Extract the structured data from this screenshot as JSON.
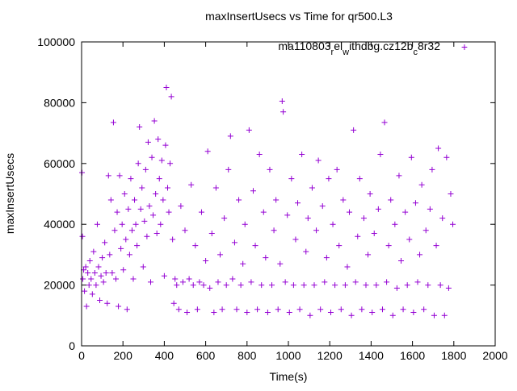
{
  "chart_data": {
    "type": "scatter",
    "title": "maxInsertUsecs vs Time for qr500.L3",
    "xlabel": "Time(s)",
    "ylabel": "maxInsertUsecs",
    "xlim": [
      0,
      2000
    ],
    "ylim": [
      0,
      100000
    ],
    "xticks": [
      "0",
      "200",
      "400",
      "600",
      "800",
      "1000",
      "1200",
      "1400",
      "1600",
      "1800",
      "2000"
    ],
    "xtick_values": [
      0,
      200,
      400,
      600,
      800,
      1000,
      1200,
      1400,
      1600,
      1800,
      2000
    ],
    "yticks": [
      "0",
      "20000",
      "40000",
      "60000",
      "80000",
      "100000"
    ],
    "ytick_values": [
      0,
      20000,
      40000,
      60000,
      80000,
      100000
    ],
    "grid": false,
    "legend_position": "top-right",
    "series": [
      {
        "name": "ma110803_rel_withdbg.cz12b_c8r32",
        "name_parts": [
          {
            "t": "ma110803"
          },
          {
            "t": "r",
            "sub": true
          },
          {
            "t": "el"
          },
          {
            "t": "w",
            "sub": true
          },
          {
            "t": "ithdbg.cz12b"
          },
          {
            "t": "c",
            "sub": true
          },
          {
            "t": "8r32"
          }
        ],
        "color": "#9400d3",
        "marker": "+",
        "points": [
          [
            2,
            57000
          ],
          [
            4,
            36000
          ],
          [
            6,
            22000
          ],
          [
            10,
            25000
          ],
          [
            14,
            18000
          ],
          [
            20,
            26000
          ],
          [
            24,
            13000
          ],
          [
            30,
            24000
          ],
          [
            36,
            20000
          ],
          [
            40,
            28000
          ],
          [
            46,
            22000
          ],
          [
            52,
            17000
          ],
          [
            58,
            31000
          ],
          [
            64,
            24000
          ],
          [
            70,
            20000
          ],
          [
            76,
            40000
          ],
          [
            82,
            26000
          ],
          [
            88,
            15000
          ],
          [
            94,
            23000
          ],
          [
            100,
            29000
          ],
          [
            106,
            21000
          ],
          [
            112,
            34000
          ],
          [
            118,
            24000
          ],
          [
            124,
            14000
          ],
          [
            130,
            56000
          ],
          [
            136,
            30000
          ],
          [
            142,
            48000
          ],
          [
            148,
            24000
          ],
          [
            154,
            73500
          ],
          [
            160,
            38000
          ],
          [
            166,
            22000
          ],
          [
            172,
            44000
          ],
          [
            178,
            13000
          ],
          [
            184,
            56000
          ],
          [
            190,
            32000
          ],
          [
            196,
            40000
          ],
          [
            202,
            25000
          ],
          [
            208,
            50000
          ],
          [
            214,
            35000
          ],
          [
            220,
            12000
          ],
          [
            226,
            45000
          ],
          [
            232,
            30000
          ],
          [
            238,
            55000
          ],
          [
            244,
            38000
          ],
          [
            250,
            22000
          ],
          [
            256,
            48000
          ],
          [
            262,
            40000
          ],
          [
            268,
            33000
          ],
          [
            274,
            60000
          ],
          [
            280,
            72000
          ],
          [
            286,
            45000
          ],
          [
            292,
            52000
          ],
          [
            298,
            26000
          ],
          [
            304,
            41000
          ],
          [
            310,
            58000
          ],
          [
            316,
            36000
          ],
          [
            322,
            67000
          ],
          [
            328,
            46000
          ],
          [
            334,
            21000
          ],
          [
            340,
            62000
          ],
          [
            346,
            43000
          ],
          [
            352,
            74000
          ],
          [
            358,
            50000
          ],
          [
            364,
            37000
          ],
          [
            370,
            68000
          ],
          [
            376,
            55000
          ],
          [
            382,
            40000
          ],
          [
            388,
            61000
          ],
          [
            394,
            48000
          ],
          [
            400,
            23000
          ],
          [
            406,
            66000
          ],
          [
            410,
            85000
          ],
          [
            416,
            52000
          ],
          [
            422,
            44000
          ],
          [
            428,
            60000
          ],
          [
            434,
            82000
          ],
          [
            440,
            35000
          ],
          [
            446,
            14000
          ],
          [
            452,
            22000
          ],
          [
            460,
            20000
          ],
          [
            470,
            12000
          ],
          [
            480,
            46000
          ],
          [
            490,
            21000
          ],
          [
            500,
            38000
          ],
          [
            510,
            11000
          ],
          [
            520,
            22000
          ],
          [
            530,
            53000
          ],
          [
            540,
            20000
          ],
          [
            550,
            33000
          ],
          [
            560,
            12000
          ],
          [
            570,
            21000
          ],
          [
            580,
            44000
          ],
          [
            590,
            20000
          ],
          [
            600,
            28000
          ],
          [
            610,
            64000
          ],
          [
            620,
            19000
          ],
          [
            630,
            37000
          ],
          [
            640,
            11000
          ],
          [
            650,
            52000
          ],
          [
            660,
            21000
          ],
          [
            670,
            30000
          ],
          [
            680,
            12000
          ],
          [
            690,
            42000
          ],
          [
            700,
            20000
          ],
          [
            710,
            58000
          ],
          [
            720,
            69000
          ],
          [
            730,
            22000
          ],
          [
            740,
            34000
          ],
          [
            750,
            12000
          ],
          [
            760,
            48000
          ],
          [
            770,
            20000
          ],
          [
            780,
            27000
          ],
          [
            790,
            40000
          ],
          [
            800,
            11000
          ],
          [
            810,
            71000
          ],
          [
            820,
            21000
          ],
          [
            830,
            51000
          ],
          [
            840,
            33000
          ],
          [
            850,
            12000
          ],
          [
            860,
            63000
          ],
          [
            870,
            20000
          ],
          [
            880,
            44000
          ],
          [
            890,
            29000
          ],
          [
            900,
            11000
          ],
          [
            910,
            58000
          ],
          [
            920,
            20000
          ],
          [
            930,
            38000
          ],
          [
            940,
            48000
          ],
          [
            950,
            12000
          ],
          [
            960,
            27000
          ],
          [
            970,
            80500
          ],
          [
            975,
            77000
          ],
          [
            985,
            21000
          ],
          [
            995,
            43000
          ],
          [
            1005,
            11000
          ],
          [
            1015,
            55000
          ],
          [
            1025,
            20000
          ],
          [
            1035,
            35000
          ],
          [
            1045,
            47000
          ],
          [
            1055,
            12000
          ],
          [
            1065,
            63000
          ],
          [
            1075,
            20000
          ],
          [
            1085,
            31000
          ],
          [
            1095,
            42000
          ],
          [
            1105,
            10000
          ],
          [
            1115,
            52000
          ],
          [
            1125,
            20000
          ],
          [
            1135,
            38000
          ],
          [
            1145,
            61000
          ],
          [
            1155,
            12000
          ],
          [
            1165,
            46000
          ],
          [
            1175,
            21000
          ],
          [
            1185,
            29000
          ],
          [
            1195,
            55000
          ],
          [
            1205,
            11000
          ],
          [
            1215,
            40000
          ],
          [
            1225,
            20000
          ],
          [
            1235,
            58000
          ],
          [
            1245,
            33000
          ],
          [
            1255,
            12000
          ],
          [
            1265,
            48000
          ],
          [
            1275,
            20000
          ],
          [
            1285,
            26000
          ],
          [
            1295,
            44000
          ],
          [
            1305,
            10000
          ],
          [
            1315,
            71000
          ],
          [
            1325,
            21000
          ],
          [
            1335,
            36000
          ],
          [
            1345,
            55000
          ],
          [
            1355,
            12000
          ],
          [
            1365,
            42000
          ],
          [
            1375,
            20000
          ],
          [
            1385,
            30000
          ],
          [
            1395,
            50000
          ],
          [
            1405,
            11000
          ],
          [
            1415,
            37000
          ],
          [
            1425,
            20000
          ],
          [
            1435,
            45000
          ],
          [
            1445,
            63000
          ],
          [
            1455,
            12000
          ],
          [
            1465,
            73500
          ],
          [
            1475,
            21000
          ],
          [
            1485,
            33000
          ],
          [
            1495,
            48000
          ],
          [
            1505,
            10000
          ],
          [
            1515,
            40000
          ],
          [
            1525,
            19000
          ],
          [
            1535,
            56000
          ],
          [
            1545,
            28000
          ],
          [
            1555,
            12000
          ],
          [
            1565,
            44000
          ],
          [
            1575,
            20000
          ],
          [
            1585,
            35000
          ],
          [
            1595,
            62000
          ],
          [
            1605,
            11000
          ],
          [
            1615,
            47000
          ],
          [
            1625,
            21000
          ],
          [
            1635,
            30000
          ],
          [
            1645,
            53000
          ],
          [
            1655,
            12000
          ],
          [
            1665,
            38000
          ],
          [
            1675,
            20000
          ],
          [
            1685,
            45000
          ],
          [
            1695,
            58000
          ],
          [
            1705,
            10000
          ],
          [
            1715,
            33000
          ],
          [
            1725,
            65000
          ],
          [
            1735,
            20000
          ],
          [
            1745,
            42000
          ],
          [
            1755,
            10000
          ],
          [
            1765,
            62000
          ],
          [
            1775,
            19000
          ],
          [
            1785,
            50000
          ],
          [
            1795,
            40000
          ]
        ]
      }
    ]
  }
}
